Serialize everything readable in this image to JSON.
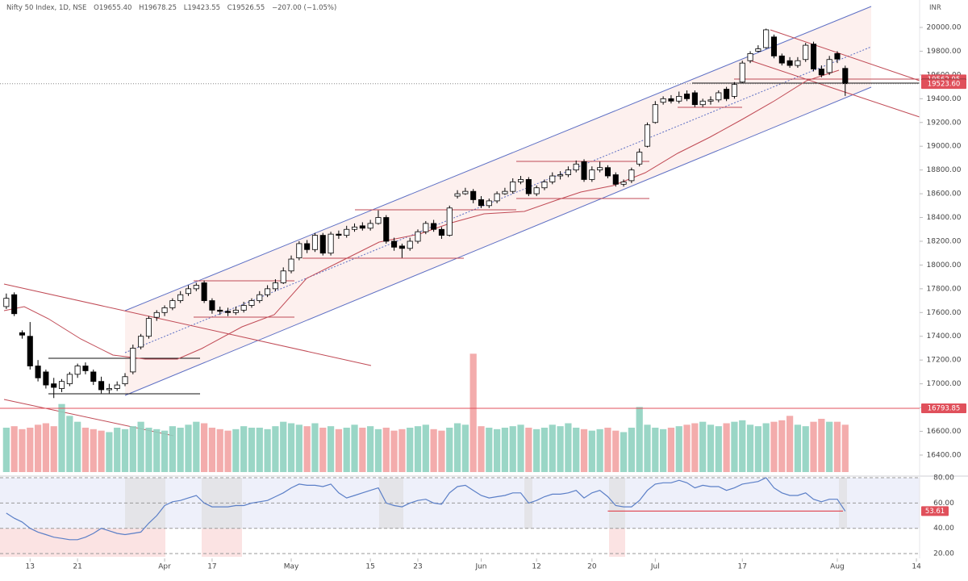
{
  "header": {
    "title": "Nifty 50 Index, 1D, NSE",
    "open": "O19655.40",
    "high": "H19678.25",
    "low": "L19423.55",
    "close": "C19526.55",
    "change": "−207.00 (−1.05%)"
  },
  "chart_data": [
    {
      "type": "candlestick",
      "currency": "INR",
      "ohlc": [
        [
          17650,
          17760,
          17630,
          17720
        ],
        [
          17750,
          17770,
          17570,
          17590
        ],
        [
          17430,
          17450,
          17380,
          17410
        ],
        [
          17400,
          17520,
          17120,
          17150
        ],
        [
          17150,
          17200,
          17020,
          17050
        ],
        [
          17100,
          17120,
          16960,
          16990
        ],
        [
          17000,
          17050,
          16880,
          16970
        ],
        [
          16960,
          17040,
          16930,
          17020
        ],
        [
          17000,
          17100,
          16980,
          17080
        ],
        [
          17080,
          17170,
          17050,
          17150
        ],
        [
          17150,
          17180,
          17080,
          17110
        ],
        [
          17100,
          17120,
          16990,
          17020
        ],
        [
          17020,
          17060,
          16920,
          16950
        ],
        [
          16950,
          17000,
          16920,
          16960
        ],
        [
          16960,
          17020,
          16940,
          16990
        ],
        [
          17000,
          17090,
          16980,
          17060
        ],
        [
          17100,
          17330,
          17080,
          17300
        ],
        [
          17310,
          17420,
          17290,
          17400
        ],
        [
          17400,
          17570,
          17380,
          17550
        ],
        [
          17560,
          17620,
          17530,
          17600
        ],
        [
          17600,
          17660,
          17570,
          17640
        ],
        [
          17640,
          17720,
          17620,
          17700
        ],
        [
          17700,
          17780,
          17680,
          17750
        ],
        [
          17760,
          17830,
          17740,
          17800
        ],
        [
          17800,
          17850,
          17780,
          17830
        ],
        [
          17850,
          17870,
          17680,
          17700
        ],
        [
          17700,
          17720,
          17590,
          17620
        ],
        [
          17620,
          17650,
          17580,
          17610
        ],
        [
          17610,
          17640,
          17570,
          17600
        ],
        [
          17600,
          17650,
          17580,
          17620
        ],
        [
          17620,
          17690,
          17600,
          17660
        ],
        [
          17660,
          17720,
          17640,
          17700
        ],
        [
          17700,
          17780,
          17680,
          17750
        ],
        [
          17750,
          17830,
          17730,
          17800
        ],
        [
          17800,
          17880,
          17780,
          17850
        ],
        [
          17850,
          17980,
          17840,
          17950
        ],
        [
          17950,
          18080,
          17930,
          18050
        ],
        [
          18060,
          18200,
          18040,
          18180
        ],
        [
          18180,
          18210,
          18100,
          18130
        ],
        [
          18130,
          18270,
          18110,
          18250
        ],
        [
          18250,
          18270,
          18080,
          18100
        ],
        [
          18100,
          18280,
          18080,
          18260
        ],
        [
          18260,
          18290,
          18220,
          18250
        ],
        [
          18250,
          18330,
          18230,
          18300
        ],
        [
          18300,
          18350,
          18280,
          18320
        ],
        [
          18330,
          18360,
          18290,
          18310
        ],
        [
          18310,
          18380,
          18290,
          18350
        ],
        [
          18350,
          18460,
          18340,
          18400
        ],
        [
          18400,
          18420,
          18180,
          18200
        ],
        [
          18200,
          18230,
          18120,
          18150
        ],
        [
          18160,
          18180,
          18060,
          18140
        ],
        [
          18140,
          18230,
          18120,
          18200
        ],
        [
          18200,
          18300,
          18180,
          18280
        ],
        [
          18280,
          18370,
          18260,
          18350
        ],
        [
          18350,
          18380,
          18280,
          18300
        ],
        [
          18300,
          18320,
          18220,
          18250
        ],
        [
          18250,
          18500,
          18240,
          18480
        ],
        [
          18580,
          18630,
          18560,
          18600
        ],
        [
          18600,
          18650,
          18590,
          18620
        ],
        [
          18620,
          18640,
          18520,
          18550
        ],
        [
          18550,
          18580,
          18480,
          18500
        ],
        [
          18500,
          18560,
          18480,
          18540
        ],
        [
          18540,
          18620,
          18520,
          18600
        ],
        [
          18600,
          18650,
          18590,
          18620
        ],
        [
          18620,
          18730,
          18600,
          18700
        ],
        [
          18700,
          18750,
          18680,
          18720
        ],
        [
          18720,
          18740,
          18580,
          18600
        ],
        [
          18600,
          18670,
          18580,
          18650
        ],
        [
          18650,
          18720,
          18630,
          18700
        ],
        [
          18700,
          18780,
          18680,
          18750
        ],
        [
          18750,
          18790,
          18720,
          18760
        ],
        [
          18760,
          18830,
          18740,
          18800
        ],
        [
          18800,
          18880,
          18780,
          18850
        ],
        [
          18870,
          18890,
          18700,
          18720
        ],
        [
          18720,
          18830,
          18700,
          18800
        ],
        [
          18800,
          18870,
          18780,
          18820
        ],
        [
          18820,
          18840,
          18730,
          18750
        ],
        [
          18760,
          18780,
          18660,
          18680
        ],
        [
          18680,
          18720,
          18660,
          18700
        ],
        [
          18710,
          18820,
          18690,
          18800
        ],
        [
          18850,
          18980,
          18830,
          18950
        ],
        [
          19000,
          19200,
          18990,
          19180
        ],
        [
          19200,
          19380,
          19190,
          19350
        ],
        [
          19370,
          19420,
          19350,
          19400
        ],
        [
          19400,
          19430,
          19360,
          19380
        ],
        [
          19380,
          19460,
          19360,
          19420
        ],
        [
          19440,
          19470,
          19380,
          19400
        ],
        [
          19450,
          19470,
          19330,
          19350
        ],
        [
          19350,
          19400,
          19330,
          19380
        ],
        [
          19380,
          19420,
          19350,
          19390
        ],
        [
          19390,
          19470,
          19370,
          19450
        ],
        [
          19480,
          19500,
          19380,
          19400
        ],
        [
          19420,
          19540,
          19400,
          19520
        ],
        [
          19540,
          19720,
          19530,
          19700
        ],
        [
          19720,
          19800,
          19700,
          19780
        ],
        [
          19800,
          19850,
          19790,
          19820
        ],
        [
          19830,
          19990,
          19820,
          19980
        ],
        [
          19920,
          19940,
          19740,
          19760
        ],
        [
          19760,
          19780,
          19680,
          19700
        ],
        [
          19720,
          19750,
          19660,
          19680
        ],
        [
          19680,
          19750,
          19660,
          19720
        ],
        [
          19730,
          19870,
          19710,
          19850
        ],
        [
          19860,
          19880,
          19630,
          19650
        ],
        [
          19650,
          19680,
          19580,
          19600
        ],
        [
          19620,
          19760,
          19600,
          19730
        ],
        [
          19780,
          19800,
          19700,
          19733.55
        ],
        [
          19655.4,
          19678.25,
          19423.55,
          19526.55
        ]
      ],
      "xlim": [
        -0.8,
        115.4
      ],
      "xticks": [
        {
          "value": 3,
          "label": "13"
        },
        {
          "value": 9,
          "label": "21"
        },
        {
          "value": 20,
          "label": "Apr"
        },
        {
          "value": 26,
          "label": "17"
        },
        {
          "value": 36,
          "label": "May"
        },
        {
          "value": 46,
          "label": "15"
        },
        {
          "value": 52,
          "label": "23"
        },
        {
          "value": 60,
          "label": "Jun"
        },
        {
          "value": 67,
          "label": "12"
        },
        {
          "value": 74,
          "label": "20"
        },
        {
          "value": 82,
          "label": "Jul"
        },
        {
          "value": 93,
          "label": "17"
        },
        {
          "value": 105,
          "label": "Aug"
        },
        {
          "value": 115,
          "label": "14"
        }
      ],
      "ylim": [
        16223,
        20231
      ],
      "yticks": [
        {
          "value": 20000,
          "label": "20000.00"
        },
        {
          "value": 19800,
          "label": "19800.00"
        },
        {
          "value": 19600,
          "label": "19600.00"
        },
        {
          "value": 19400,
          "label": "19400.00"
        },
        {
          "value": 19200,
          "label": "19200.00"
        },
        {
          "value": 19000,
          "label": "19000.00"
        },
        {
          "value": 18800,
          "label": "18800.00"
        },
        {
          "value": 18600,
          "label": "18600.00"
        },
        {
          "value": 18400,
          "label": "18400.00"
        },
        {
          "value": 18200,
          "label": "18200.00"
        },
        {
          "value": 18000,
          "label": "18000.00"
        },
        {
          "value": 17800,
          "label": "17800.00"
        },
        {
          "value": 17600,
          "label": "17600.00"
        },
        {
          "value": 17400,
          "label": "17400.00"
        },
        {
          "value": 17200,
          "label": "17200.00"
        },
        {
          "value": 17000,
          "label": "17000.00"
        },
        {
          "value": 16800,
          "label": "16800.00"
        },
        {
          "value": 16600,
          "label": "16600.00"
        },
        {
          "value": 16400,
          "label": "16400.00"
        }
      ],
      "up_color": "#ffffff",
      "down_color": "#000000",
      "price_lines": [
        {
          "value": 19562.95,
          "color": "#e0505b"
        },
        {
          "value": 19526.55,
          "color": "#111111"
        },
        {
          "value": 19523.6,
          "label": "19523.60",
          "color": "#e0505b"
        },
        {
          "value": 16793.85,
          "color": "#e0505b"
        }
      ]
    },
    {
      "type": "bar",
      "values": [
        300,
        310,
        290,
        300,
        320,
        330,
        310,
        460,
        380,
        340,
        300,
        290,
        280,
        270,
        300,
        290,
        310,
        340,
        300,
        290,
        280,
        310,
        300,
        320,
        340,
        330,
        300,
        290,
        280,
        290,
        310,
        300,
        300,
        290,
        310,
        340,
        330,
        320,
        310,
        330,
        300,
        310,
        290,
        300,
        320,
        300,
        310,
        290,
        300,
        280,
        290,
        300,
        310,
        320,
        290,
        280,
        300,
        330,
        320,
        800,
        310,
        300,
        290,
        300,
        310,
        320,
        300,
        290,
        300,
        320,
        310,
        330,
        300,
        290,
        280,
        290,
        300,
        280,
        270,
        300,
        440,
        320,
        300,
        290,
        300,
        310,
        320,
        330,
        340,
        320,
        310,
        330,
        340,
        350,
        320,
        310,
        330,
        340,
        350,
        380,
        320,
        310,
        340,
        360,
        340,
        340,
        320
      ],
      "up_color": "#8fd1c0",
      "down_color": "#f2a3a3",
      "ylim": [
        0,
        900
      ]
    },
    {
      "type": "line",
      "values": [
        52,
        48,
        45,
        40,
        37,
        35,
        33,
        32,
        31,
        31,
        33,
        36,
        40,
        38,
        36,
        35,
        36,
        37,
        44,
        50,
        58,
        61,
        62,
        64,
        66,
        60,
        57,
        57,
        57,
        58,
        58,
        60,
        61,
        62,
        65,
        68,
        72,
        75,
        74,
        74,
        73,
        75,
        68,
        64,
        66,
        68,
        70,
        72,
        60,
        58,
        57,
        60,
        62,
        63,
        60,
        59,
        68,
        73,
        74,
        70,
        66,
        64,
        65,
        66,
        68,
        68,
        60,
        62,
        65,
        67,
        67,
        68,
        70,
        64,
        68,
        70,
        65,
        58,
        57,
        57,
        62,
        70,
        75,
        76,
        76,
        78,
        76,
        72,
        74,
        73,
        73,
        70,
        72,
        75,
        76,
        77,
        80,
        72,
        68,
        66,
        66,
        68,
        63,
        61,
        63,
        63,
        53.61
      ],
      "color": "#5b7fc7",
      "ylim": [
        16.2,
        81.3
      ],
      "yticks": [
        {
          "value": 80,
          "label": "80.00"
        },
        {
          "value": 60,
          "label": "60.00"
        },
        {
          "value": 40,
          "label": "40.00"
        },
        {
          "value": 20,
          "label": "20.00"
        }
      ],
      "level": 53.61,
      "level_color": "#e0505b"
    }
  ]
}
